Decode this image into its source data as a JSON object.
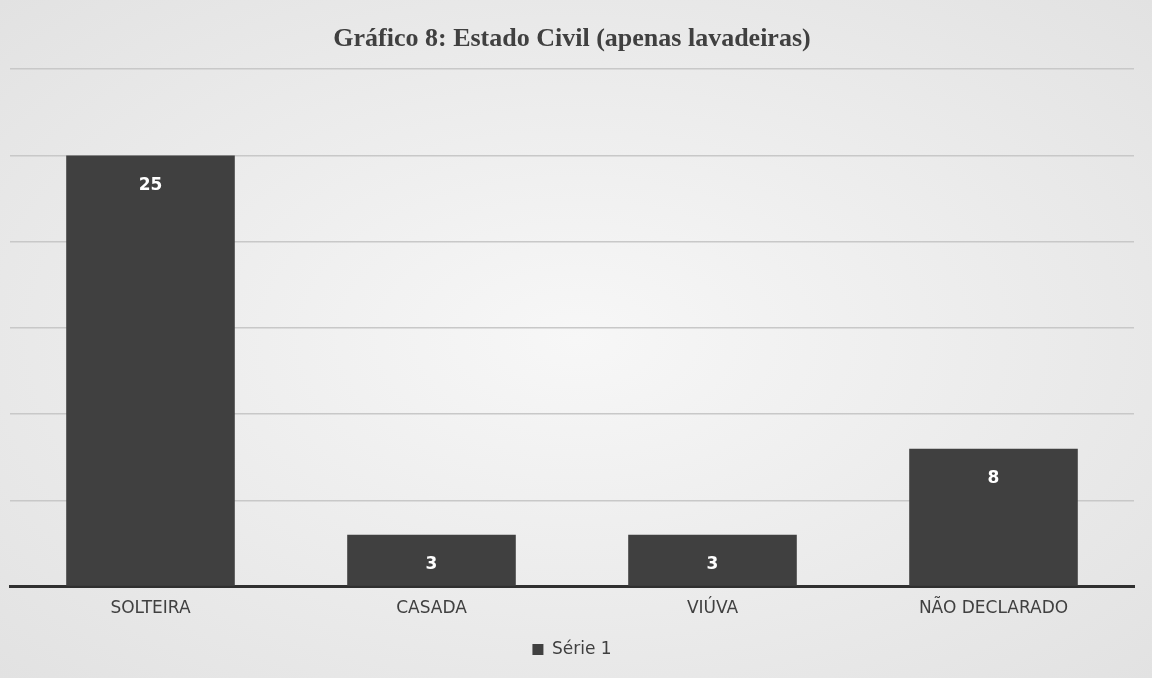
{
  "chart_data": {
    "type": "bar",
    "title": "Gráfico 8: Estado Civil (apenas lavadeiras)",
    "categories": [
      "SOLTEIRA",
      "CASADA",
      "VIÚVA",
      "NÃO DECLARADO"
    ],
    "series": [
      {
        "name": "Série 1",
        "color": "#404040",
        "values": [
          25,
          3,
          3,
          8
        ]
      }
    ],
    "ylim": [
      0,
      30
    ],
    "yticks": [
      {
        "value": 0,
        "label": null
      },
      {
        "value": 5,
        "label": null
      },
      {
        "value": 10,
        "label": null
      },
      {
        "value": 15,
        "label": null
      },
      {
        "value": 20,
        "label": null
      },
      {
        "value": 25,
        "label": null
      },
      {
        "value": 30,
        "label": null
      }
    ],
    "tick_labels": "x",
    "grid": "y",
    "legend": "bottom",
    "data_labels": true
  }
}
